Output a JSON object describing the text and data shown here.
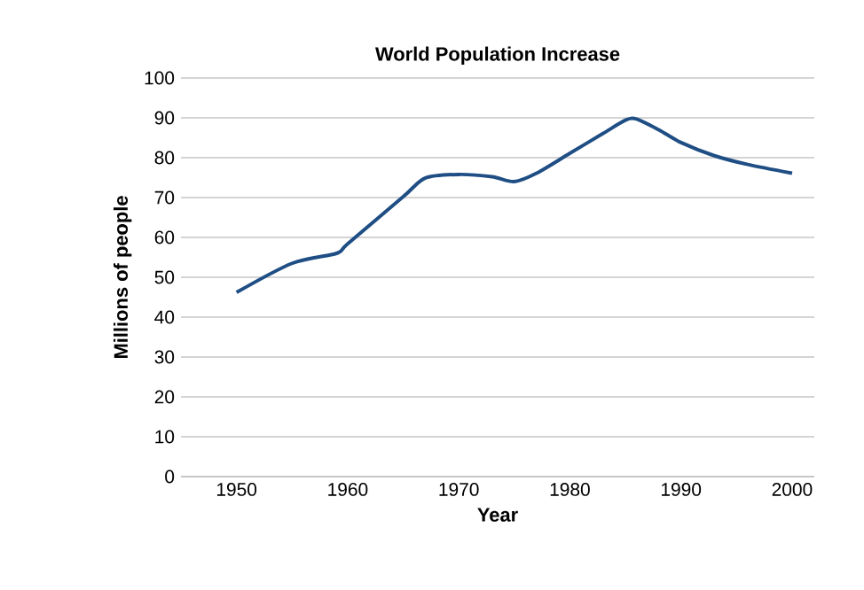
{
  "chart_data": {
    "type": "line",
    "title": "World Population Increase",
    "xlabel": "Year",
    "ylabel": "Millions of people",
    "x": [
      1950,
      1955,
      1959,
      1960,
      1965,
      1967,
      1970,
      1973,
      1975,
      1977,
      1980,
      1983,
      1985,
      1986,
      1988,
      1990,
      1993,
      1996,
      2000
    ],
    "values": [
      46.2,
      53.5,
      56,
      58.4,
      70.2,
      74.9,
      75.8,
      75.2,
      74,
      76.1,
      81.1,
      86.1,
      89.4,
      89.7,
      87,
      83.8,
      80.5,
      78.3,
      76.1
    ],
    "color": "#1f4e85",
    "xlim": [
      1945,
      2002
    ],
    "ylim": [
      0,
      100
    ],
    "xticks": [
      1950,
      1960,
      1970,
      1980,
      1990,
      2000
    ],
    "yticks": [
      0,
      10,
      20,
      30,
      40,
      50,
      60,
      70,
      80,
      90,
      100
    ],
    "grid": "y",
    "marker": "none",
    "line_style": "solid"
  }
}
